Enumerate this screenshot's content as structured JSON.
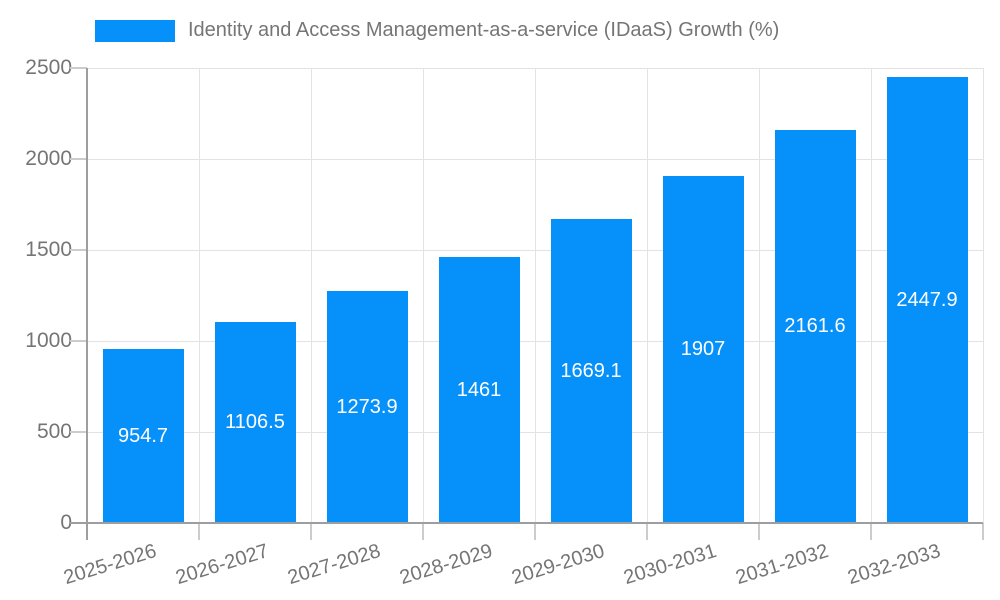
{
  "chart_data": {
    "type": "bar",
    "title": "Identity and Access Management-as-a-service (IDaaS) Growth (%)",
    "legend_position": "top",
    "categories": [
      "2025-2026",
      "2026-2027",
      "2027-2028",
      "2028-2029",
      "2029-2030",
      "2030-2031",
      "2031-2032",
      "2032-2033"
    ],
    "values": [
      954.7,
      1106.5,
      1273.9,
      1461,
      1669.1,
      1907,
      2161.6,
      2447.9
    ],
    "value_labels": [
      "954.7",
      "1106.5",
      "1273.9",
      "1461",
      "1669.1",
      "1907",
      "2161.6",
      "2447.9"
    ],
    "xlabel": "",
    "ylabel": "",
    "ylim": [
      0,
      2500
    ],
    "yticks": [
      0,
      500,
      1000,
      1500,
      2000,
      2500
    ],
    "grid": true,
    "x_tick_rotation_deg": -17
  },
  "colors": {
    "bar": "#0690fa",
    "bar_value_label": "#ffffff",
    "tick_text": "#757575",
    "legend_text": "#757575",
    "axis_line": "#9e9e9e",
    "gridline": "#e3e3e3",
    "tick_stub": "#cccccc",
    "background": "#ffffff"
  }
}
